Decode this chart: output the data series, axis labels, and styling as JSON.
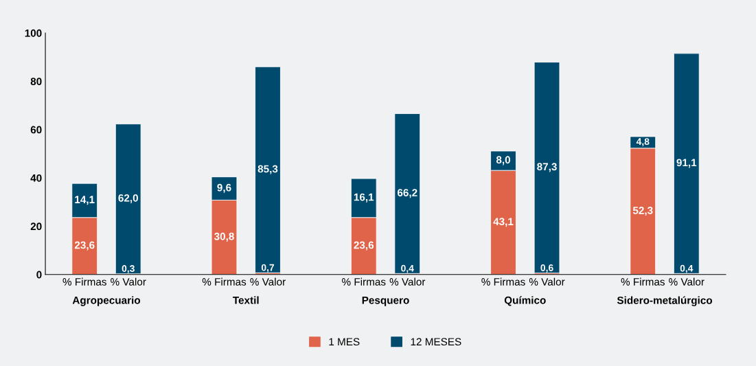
{
  "chart_data": {
    "type": "bar",
    "stacked": true,
    "categories": [
      "% Firmas",
      "% Valor",
      "% Firmas",
      "% Valor",
      "% Firmas",
      "% Valor",
      "% Firmas",
      "% Valor",
      "% Firmas",
      "% Valor"
    ],
    "series": [
      {
        "name": "1 MES",
        "color": "#e0644a",
        "values": [
          23.6,
          0.3,
          30.8,
          0.7,
          23.6,
          0.4,
          43.1,
          0.6,
          52.3,
          0.4
        ],
        "value_labels": [
          "23,6",
          "0,3",
          "30,8",
          "0,7",
          "23,6",
          "0,4",
          "43,1",
          "0,6",
          "52,3",
          "0,4"
        ]
      },
      {
        "name": "12 MESES",
        "color": "#004a6e",
        "values": [
          14.1,
          62.0,
          9.6,
          85.3,
          16.1,
          66.2,
          8.0,
          87.3,
          4.8,
          91.1
        ],
        "value_labels": [
          "14,1",
          "62,0",
          "9,6",
          "85,3",
          "16,1",
          "66,2",
          "8,0",
          "87,3",
          "4,8",
          "91,1"
        ]
      }
    ],
    "annotations": [
      "Agropecuario",
      "Textil",
      "Pesquero",
      "Químico",
      "Sidero-metalúrgico"
    ],
    "ylim": [
      0,
      100
    ],
    "yticks": [
      0,
      20,
      40,
      60,
      80,
      100
    ],
    "grid": false,
    "legend": "bottom"
  }
}
